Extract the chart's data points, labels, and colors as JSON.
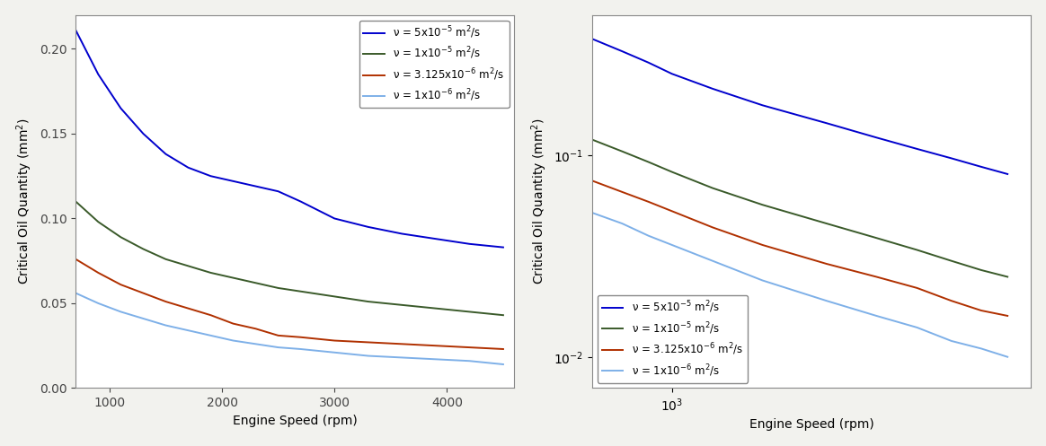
{
  "xlabel": "Engine Speed (rpm)",
  "ylabel": "Critical Oil Quantity (mm$^2$)",
  "rpm_linear": [
    700,
    900,
    1100,
    1300,
    1500,
    1700,
    1900,
    2100,
    2300,
    2500,
    2700,
    3000,
    3300,
    3600,
    3900,
    4200,
    4500
  ],
  "series": [
    {
      "label": "ν = 5x10$^{-5}$ m$^2$/s",
      "color": "#0000CD",
      "linewidth": 1.4,
      "values_linear": [
        0.211,
        0.185,
        0.165,
        0.15,
        0.138,
        0.13,
        0.125,
        0.122,
        0.119,
        0.116,
        0.11,
        0.1,
        0.095,
        0.091,
        0.088,
        0.085,
        0.083
      ]
    },
    {
      "label": "ν = 1x10$^{-5}$ m$^2$/s",
      "color": "#3a5a2a",
      "linewidth": 1.4,
      "values_linear": [
        0.11,
        0.098,
        0.089,
        0.082,
        0.076,
        0.072,
        0.068,
        0.065,
        0.062,
        0.059,
        0.057,
        0.054,
        0.051,
        0.049,
        0.047,
        0.045,
        0.043
      ]
    },
    {
      "label": "ν = 3.125x10$^{-6}$ m$^2$/s",
      "color": "#B03000",
      "linewidth": 1.4,
      "values_linear": [
        0.076,
        0.068,
        0.061,
        0.056,
        0.051,
        0.047,
        0.043,
        0.038,
        0.035,
        0.031,
        0.03,
        0.028,
        0.027,
        0.026,
        0.025,
        0.024,
        0.023
      ]
    },
    {
      "label": "ν = 1x10$^{-6}$ m$^2$/s",
      "color": "#7EB0E8",
      "linewidth": 1.4,
      "values_linear": [
        0.056,
        0.05,
        0.045,
        0.041,
        0.037,
        0.034,
        0.031,
        0.028,
        0.026,
        0.024,
        0.023,
        0.021,
        0.019,
        0.018,
        0.017,
        0.016,
        0.014
      ]
    }
  ],
  "rpm_loglog": [
    700,
    800,
    900,
    1000,
    1200,
    1500,
    2000,
    2500,
    3000,
    3500,
    4000,
    4500
  ],
  "series_loglog": [
    {
      "label": "ν = 5x10$^{-5}$ m$^2$/s",
      "color": "#0000CD",
      "linewidth": 1.4,
      "values": [
        0.38,
        0.33,
        0.29,
        0.255,
        0.215,
        0.178,
        0.145,
        0.123,
        0.108,
        0.097,
        0.088,
        0.081
      ]
    },
    {
      "label": "ν = 1x10$^{-5}$ m$^2$/s",
      "color": "#3a5a2a",
      "linewidth": 1.4,
      "values": [
        0.12,
        0.105,
        0.093,
        0.083,
        0.069,
        0.057,
        0.046,
        0.039,
        0.034,
        0.03,
        0.027,
        0.025
      ]
    },
    {
      "label": "ν = 3.125x10$^{-6}$ m$^2$/s",
      "color": "#B03000",
      "linewidth": 1.4,
      "values": [
        0.075,
        0.066,
        0.059,
        0.053,
        0.044,
        0.036,
        0.029,
        0.025,
        0.022,
        0.019,
        0.017,
        0.016
      ]
    },
    {
      "label": "ν = 1x10$^{-6}$ m$^2$/s",
      "color": "#7EB0E8",
      "linewidth": 1.4,
      "values": [
        0.052,
        0.046,
        0.04,
        0.036,
        0.03,
        0.024,
        0.019,
        0.016,
        0.014,
        0.012,
        0.011,
        0.01
      ]
    }
  ],
  "background_color": "#f2f2ee",
  "plot_bg_color": "#ffffff",
  "tick_fontsize": 10,
  "label_fontsize": 10,
  "legend_fontsize": 8.5
}
